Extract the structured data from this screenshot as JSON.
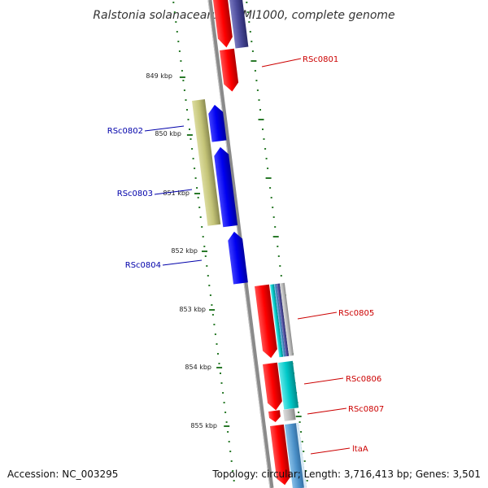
{
  "title": "Ralstonia solanacearum GMI1000, complete genome",
  "footer": {
    "accession": "Accession: NC_003295",
    "summary": "Topology: circular; Length: 3,716,413 bp; Genes: 3,501"
  },
  "colors": {
    "forward_cds": "#ff0000",
    "reverse_cds": "#0000ee",
    "olive_track": "#c8c878",
    "purple_track": "#4a4a9a",
    "cyan_track": "#00c8c8",
    "gray_track": "#b0b0b0",
    "steelblue_track": "#4a90c8",
    "backbone": "#808080",
    "ticks": "#2a7a2a"
  },
  "kbp_labels": [
    "849 kbp",
    "850 kbp",
    "851 kbp",
    "852 kbp",
    "853 kbp",
    "854 kbp",
    "855 kbp"
  ],
  "genes": [
    {
      "name": "RSc0801",
      "strand": "forward",
      "color": "#cc0000"
    },
    {
      "name": "RSc0802",
      "strand": "reverse",
      "color": "#0000aa"
    },
    {
      "name": "RSc0803",
      "strand": "reverse",
      "color": "#0000aa"
    },
    {
      "name": "RSc0804",
      "strand": "reverse",
      "color": "#0000aa"
    },
    {
      "name": "RSc0805",
      "strand": "forward",
      "color": "#cc0000"
    },
    {
      "name": "RSc0806",
      "strand": "forward",
      "color": "#cc0000"
    },
    {
      "name": "RSc0807",
      "strand": "forward",
      "color": "#cc0000"
    },
    {
      "name": "ltaA",
      "strand": "forward",
      "color": "#cc0000"
    }
  ]
}
